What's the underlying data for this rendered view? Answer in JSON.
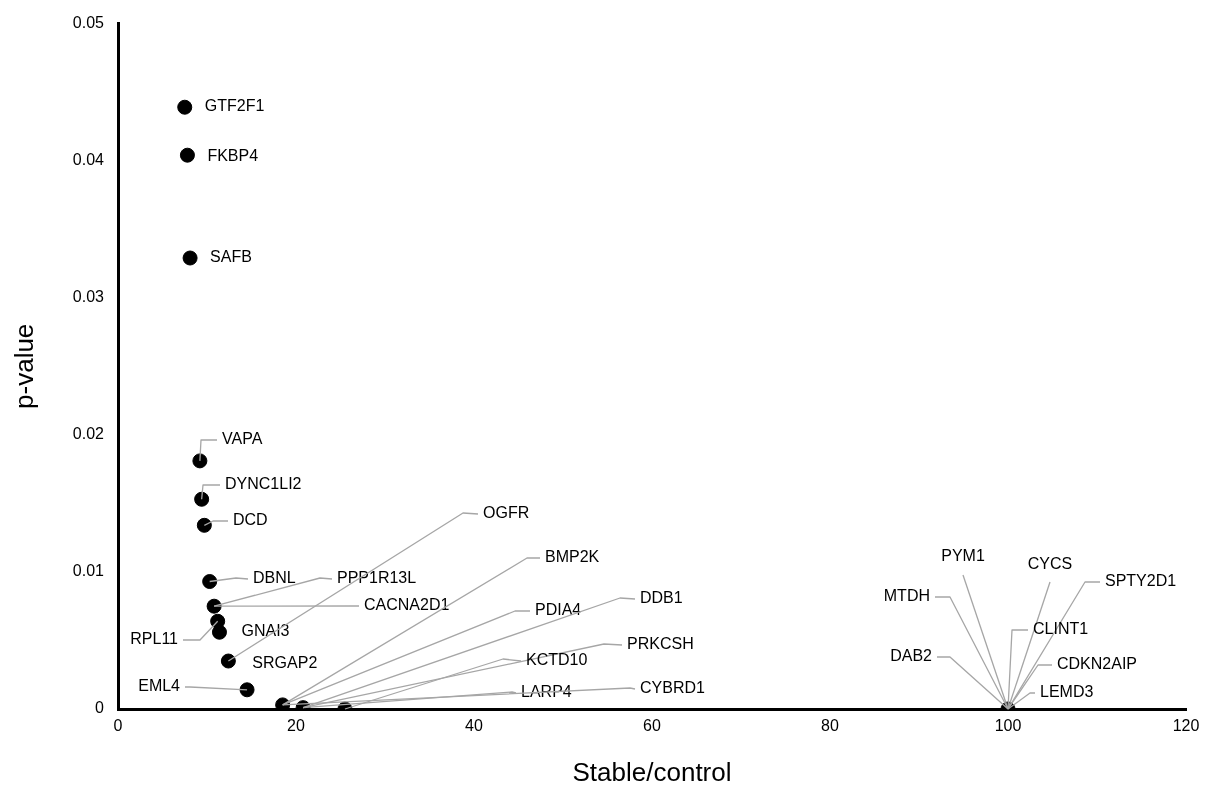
{
  "chart_data": {
    "type": "scatter",
    "xlabel": "Stable/control",
    "ylabel": "p-value",
    "xlim": [
      0,
      120
    ],
    "xticks": [
      0,
      20,
      40,
      60,
      80,
      100,
      120
    ],
    "ylim": [
      0,
      0.05
    ],
    "yticks": [
      0,
      0.01,
      0.02,
      0.03,
      0.04,
      0.05
    ],
    "grid": false,
    "legend": false,
    "marker": "circle",
    "x": [
      7.5,
      7.8,
      8.1,
      9.2,
      9.4,
      9.7,
      10.3,
      10.8,
      11.2,
      11.4,
      12.4,
      14.5,
      18.5,
      20.8,
      25.5,
      100
    ],
    "series": [
      {
        "color": "#000000",
        "values": [
          0.0439,
          0.0404,
          0.0329,
          0.0181,
          0.0153,
          0.0134,
          0.0093,
          0.0075,
          0.0064,
          0.0056,
          0.0035,
          0.0014,
          0.0003,
          0.0001,
          0,
          0
        ]
      }
    ],
    "annotations": [
      {
        "text": "GTF2F1",
        "x": 7.5,
        "y": 0.0439
      },
      {
        "text": "FKBP4",
        "x": 7.8,
        "y": 0.0404
      },
      {
        "text": "SAFB",
        "x": 8.1,
        "y": 0.0329
      },
      {
        "text": "VAPA",
        "x": 9.2,
        "y": 0.0181
      },
      {
        "text": "DYNC1LI2",
        "x": 9.4,
        "y": 0.0153
      },
      {
        "text": "DCD",
        "x": 9.7,
        "y": 0.0134
      },
      {
        "text": "DBNL",
        "x": 10.3,
        "y": 0.0093
      },
      {
        "text": "PPP1R13L",
        "x": 10.8,
        "y": 0.0075
      },
      {
        "text": "CACNA2D1",
        "x": 10.8,
        "y": 0.0075
      },
      {
        "text": "RPL11",
        "x": 11.2,
        "y": 0.0064
      },
      {
        "text": "GNAI3",
        "x": 11.4,
        "y": 0.0056
      },
      {
        "text": "SRGAP2",
        "x": 12.4,
        "y": 0.0035
      },
      {
        "text": "OGFR",
        "x": 12.4,
        "y": 0.0035
      },
      {
        "text": "EML4",
        "x": 14.5,
        "y": 0.0014
      },
      {
        "text": "BMP2K",
        "x": 18.5,
        "y": 0.0003
      },
      {
        "text": "PDIA4",
        "x": 18.5,
        "y": 0.0003
      },
      {
        "text": "DDB1",
        "x": 20.8,
        "y": 0.0001
      },
      {
        "text": "PRKCSH",
        "x": 20.8,
        "y": 0.0001
      },
      {
        "text": "KCTD10",
        "x": 25.5,
        "y": 0
      },
      {
        "text": "LARP4",
        "x": 20.8,
        "y": 0.0001
      },
      {
        "text": "CYBRD1",
        "x": 18.5,
        "y": 0.0003
      },
      {
        "text": "PYM1",
        "x": 100,
        "y": 0
      },
      {
        "text": "CYCS",
        "x": 100,
        "y": 0
      },
      {
        "text": "SPTY2D1",
        "x": 100,
        "y": 0
      },
      {
        "text": "MTDH",
        "x": 100,
        "y": 0
      },
      {
        "text": "CLINT1",
        "x": 100,
        "y": 0
      },
      {
        "text": "DAB2",
        "x": 100,
        "y": 0
      },
      {
        "text": "CDKN2AIP",
        "x": 100,
        "y": 0
      },
      {
        "text": "LEMD3",
        "x": 100,
        "y": 0
      }
    ]
  }
}
